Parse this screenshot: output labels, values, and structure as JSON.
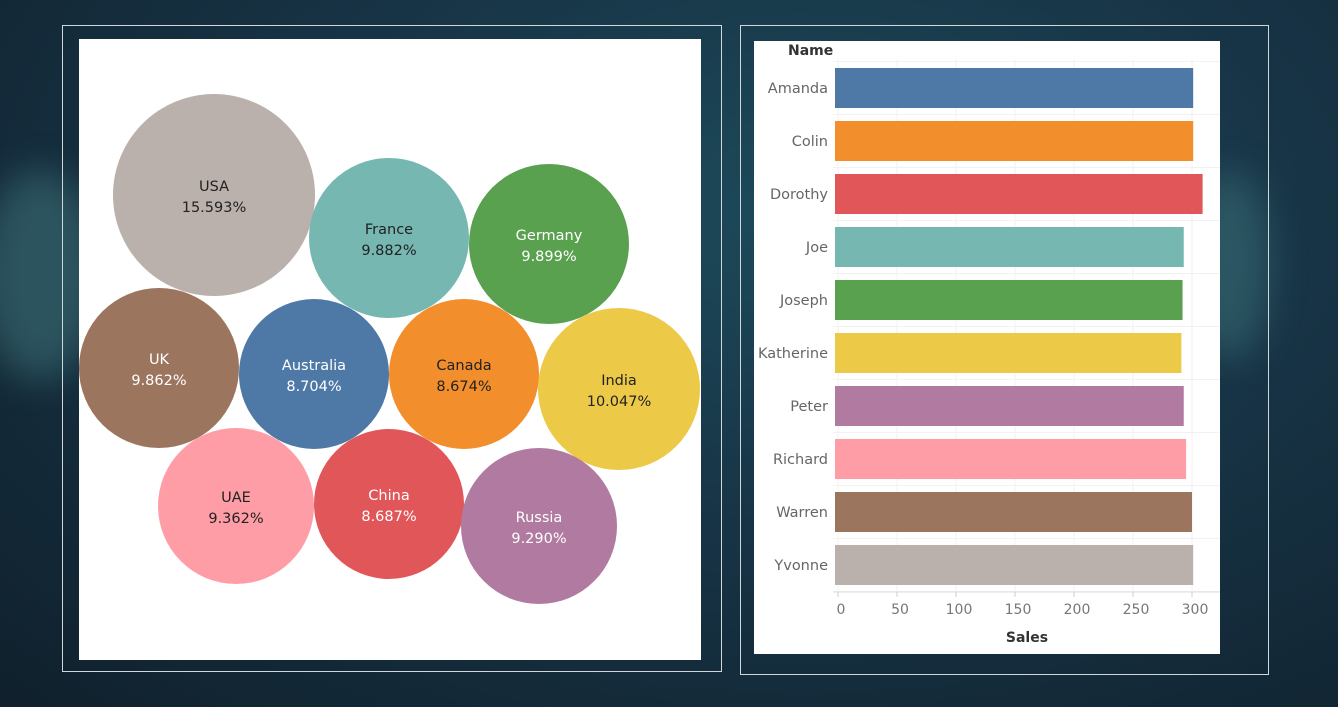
{
  "chart_data": [
    {
      "type": "bubble",
      "title": "",
      "bubbles": [
        {
          "label": "USA",
          "value": "15.593%",
          "color": "#bab0ac",
          "text_color": "#222222"
        },
        {
          "label": "France",
          "value": "9.882%",
          "color": "#76b7b2",
          "text_color": "#222222"
        },
        {
          "label": "Germany",
          "value": "9.899%",
          "color": "#59a14f",
          "text_color": "#ffffff"
        },
        {
          "label": "UK",
          "value": "9.862%",
          "color": "#9c755f",
          "text_color": "#ffffff"
        },
        {
          "label": "Australia",
          "value": "8.704%",
          "color": "#4e79a7",
          "text_color": "#ffffff"
        },
        {
          "label": "Canada",
          "value": "8.674%",
          "color": "#f28e2b",
          "text_color": "#222222"
        },
        {
          "label": "India",
          "value": "10.047%",
          "color": "#edc948",
          "text_color": "#222222"
        },
        {
          "label": "UAE",
          "value": "9.362%",
          "color": "#ff9da7",
          "text_color": "#222222"
        },
        {
          "label": "China",
          "value": "8.687%",
          "color": "#e15759",
          "text_color": "#ffffff"
        },
        {
          "label": "Russia",
          "value": "9.290%",
          "color": "#b07aa1",
          "text_color": "#ffffff"
        }
      ]
    },
    {
      "type": "bar",
      "orientation": "horizontal",
      "header": "Name",
      "xlabel": "Sales",
      "xlim": [
        0,
        320
      ],
      "xticks": [
        0,
        50,
        100,
        150,
        200,
        250,
        300
      ],
      "categories": [
        "Amanda",
        "Colin",
        "Dorothy",
        "Joe",
        "Joseph",
        "Katherine",
        "Peter",
        "Richard",
        "Warren",
        "Yvonne"
      ],
      "values": [
        301,
        301,
        309,
        293,
        292,
        291,
        293,
        295,
        300,
        301
      ],
      "colors": [
        "#4e79a7",
        "#f28e2b",
        "#e15759",
        "#76b7b2",
        "#59a14f",
        "#edc948",
        "#b07aa1",
        "#ff9da7",
        "#9c755f",
        "#bab0ac"
      ]
    }
  ]
}
